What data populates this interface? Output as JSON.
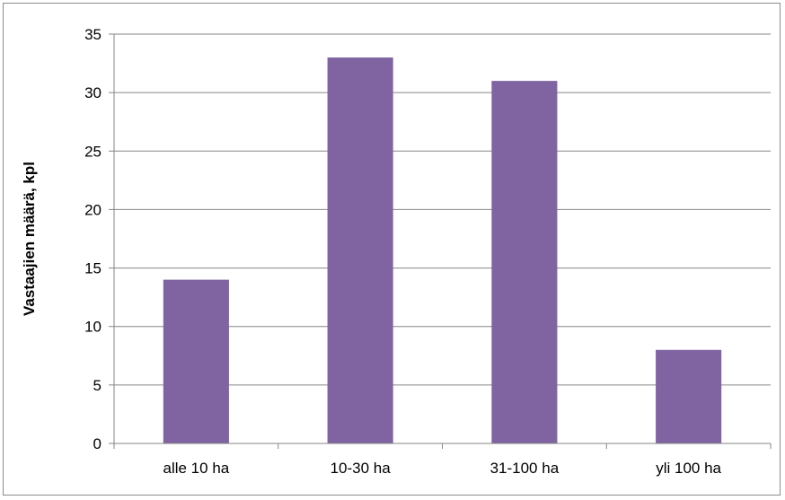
{
  "chart_data": {
    "type": "bar",
    "categories": [
      "alle 10 ha",
      "10-30 ha",
      "31-100 ha",
      "yli 100 ha"
    ],
    "values": [
      14,
      33,
      31,
      8
    ],
    "title": "",
    "xlabel": "",
    "ylabel": "Vastaajien määrä, kpl",
    "ylim": [
      0,
      35
    ],
    "yticks": [
      0,
      5,
      10,
      15,
      20,
      25,
      30,
      35
    ],
    "grid": true,
    "legend": "none",
    "bar_color": "#8064a2",
    "grid_color": "#868686"
  }
}
